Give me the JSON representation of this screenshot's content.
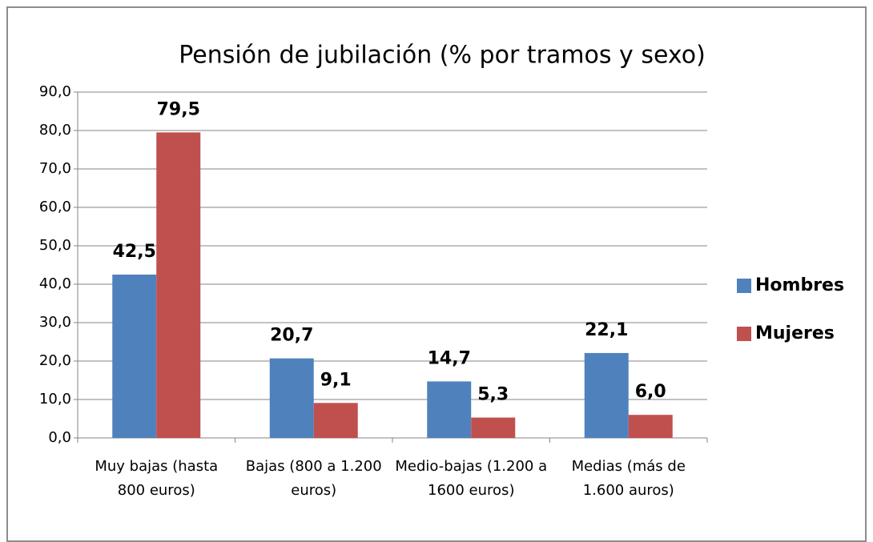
{
  "chart_data": {
    "type": "bar",
    "title": "Pensión de jubilación (% por tramos y sexo)",
    "categories": [
      "Muy bajas (hasta 800 euros)",
      "Bajas (800 a 1.200 euros)",
      "Medio-bajas (1.200 a 1600 euros)",
      "Medias (más de 1.600 auros)"
    ],
    "series": [
      {
        "name": "Hombres",
        "color": "#4f81bd",
        "values": [
          42.5,
          20.7,
          14.7,
          22.1
        ],
        "value_labels": [
          "42,5",
          "20,7",
          "14,7",
          "22,1"
        ]
      },
      {
        "name": "Mujeres",
        "color": "#c0504d",
        "values": [
          79.5,
          9.1,
          5.3,
          6.0
        ],
        "value_labels": [
          "79,5",
          "9,1",
          "5,3",
          "6,0"
        ]
      }
    ],
    "ylim": [
      0,
      90
    ],
    "yticks": [
      {
        "value": 0,
        "label": "0,0"
      },
      {
        "value": 10,
        "label": "10,0"
      },
      {
        "value": 20,
        "label": "20,0"
      },
      {
        "value": 30,
        "label": "30,0"
      },
      {
        "value": 40,
        "label": "40,0"
      },
      {
        "value": 50,
        "label": "50,0"
      },
      {
        "value": 60,
        "label": "60,0"
      },
      {
        "value": 70,
        "label": "70,0"
      },
      {
        "value": 80,
        "label": "80,0"
      },
      {
        "value": 90,
        "label": "90,0"
      }
    ],
    "grid": true,
    "legend": "right"
  }
}
